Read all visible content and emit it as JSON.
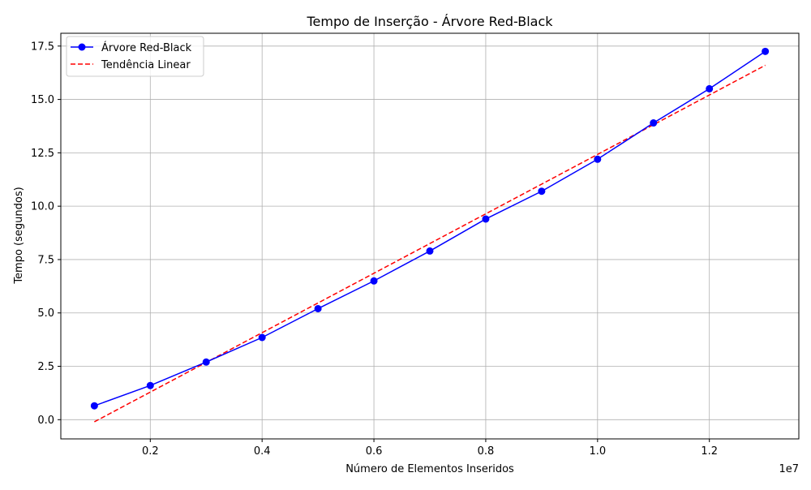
{
  "chart_data": {
    "type": "line",
    "title": "Tempo de Inserção - Árvore Red-Black",
    "xlabel": "Número de Elementos Inseridos",
    "ylabel": "Tempo (segundos)",
    "x_offset_label": "1e7",
    "xlim": [
      0.04,
      1.36
    ],
    "ylim": [
      -0.9,
      18.1
    ],
    "x_ticks": [
      0.2,
      0.4,
      0.6,
      0.8,
      1.0,
      1.2
    ],
    "x_tick_labels": [
      "0.2",
      "0.4",
      "0.6",
      "0.8",
      "1.0",
      "1.2"
    ],
    "y_ticks": [
      0.0,
      2.5,
      5.0,
      7.5,
      10.0,
      12.5,
      15.0,
      17.5
    ],
    "y_tick_labels": [
      "0.0",
      "2.5",
      "5.0",
      "7.5",
      "10.0",
      "12.5",
      "15.0",
      "17.5"
    ],
    "grid": true,
    "legend_position": "top-left",
    "series": [
      {
        "name": "Árvore Red-Black",
        "style": "solid-line-with-circle-markers",
        "color": "#0000ff",
        "x": [
          0.1,
          0.2,
          0.3,
          0.4,
          0.5,
          0.6,
          0.7,
          0.8,
          0.9,
          1.0,
          1.1,
          1.2,
          1.3
        ],
        "y": [
          0.65,
          1.6,
          2.7,
          3.85,
          5.2,
          6.5,
          7.9,
          9.4,
          10.7,
          12.2,
          13.9,
          15.5,
          17.25
        ]
      },
      {
        "name": "Tendência Linear",
        "style": "dashed-line",
        "color": "#ff0000",
        "x": [
          0.1,
          1.3
        ],
        "y": [
          -0.1,
          16.6
        ]
      }
    ]
  }
}
